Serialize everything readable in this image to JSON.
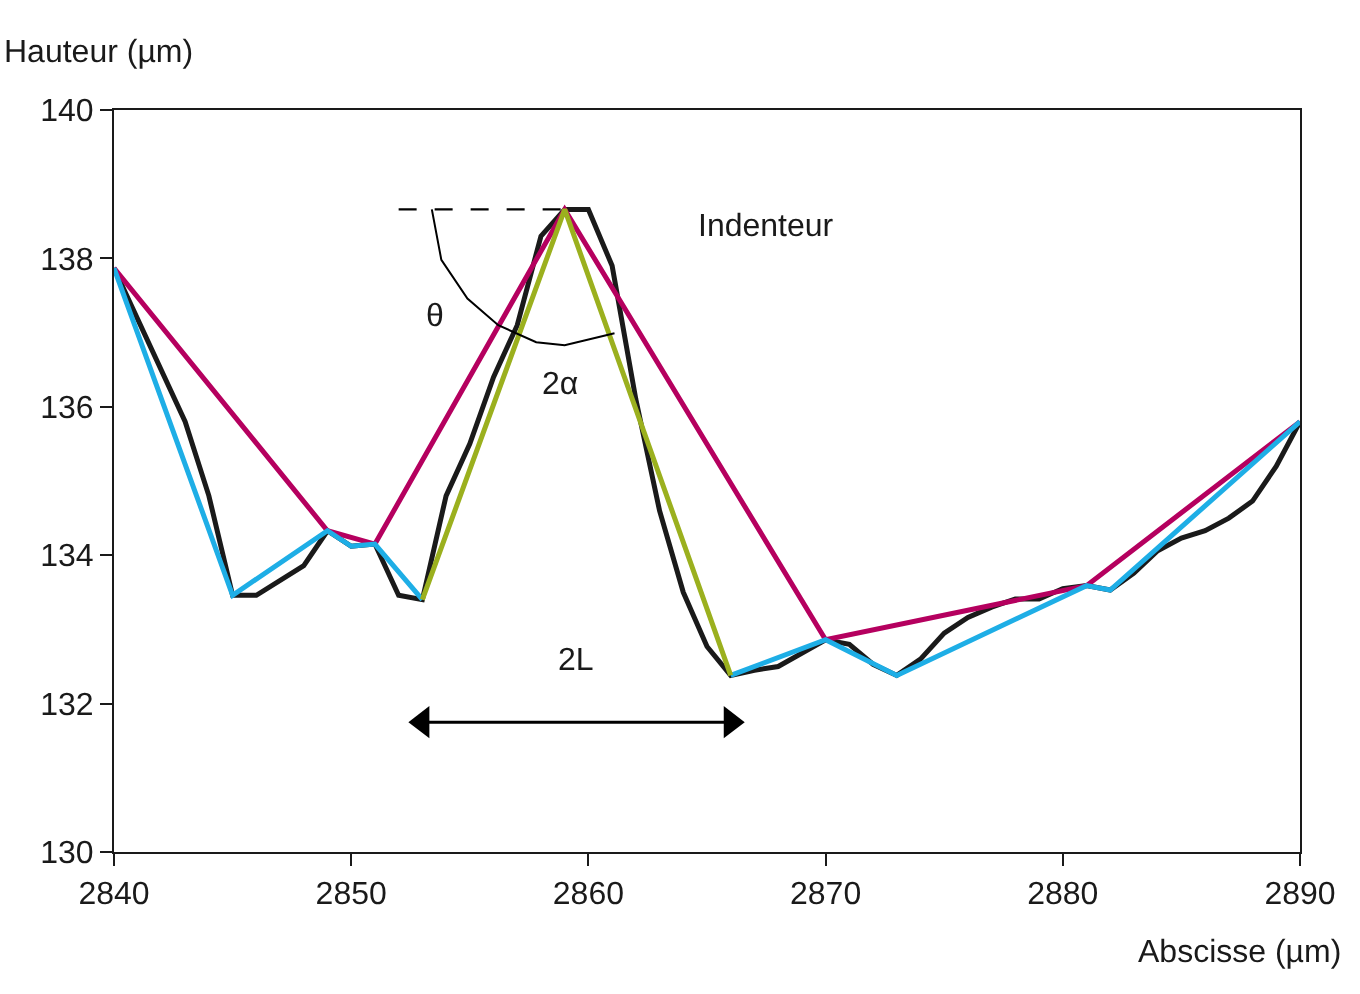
{
  "chart_data": {
    "type": "line",
    "xlabel": "Abscisse (µm)",
    "ylabel": "Hauteur (µm)",
    "xlim": [
      2840,
      2890
    ],
    "xticks": [
      2840,
      2850,
      2860,
      2870,
      2880,
      2890
    ],
    "ylim": [
      130,
      140
    ],
    "yticks": [
      130,
      132,
      134,
      136,
      138,
      140
    ],
    "marker": "none",
    "line_style": "solid",
    "series": [
      {
        "color": "#1a1a1a",
        "x": [
          2840,
          2843,
          2844,
          2845,
          2846,
          2848,
          2849,
          2850,
          2851,
          2852,
          2853,
          2854,
          2855,
          2856,
          2857,
          2858,
          2859,
          2860,
          2861,
          2862,
          2863,
          2864,
          2865,
          2866,
          2867,
          2868,
          2870,
          2871,
          2872,
          2873,
          2874,
          2875,
          2876,
          2877,
          2878,
          2879,
          2880,
          2881,
          2882,
          2883,
          2884,
          2885,
          2886,
          2887,
          2888,
          2889,
          2890
        ],
        "values": [
          137.87,
          135.8,
          134.8,
          133.46,
          133.46,
          133.86,
          134.33,
          134.12,
          134.15,
          133.46,
          133.4,
          134.8,
          135.5,
          136.4,
          137.1,
          138.3,
          138.66,
          138.66,
          137.9,
          136.1,
          134.6,
          133.5,
          132.77,
          132.38,
          132.45,
          132.5,
          132.86,
          132.8,
          132.53,
          132.38,
          132.6,
          132.95,
          133.16,
          133.3,
          133.41,
          133.41,
          133.55,
          133.59,
          133.53,
          133.76,
          134.06,
          134.23,
          134.33,
          134.5,
          134.73,
          135.2,
          135.8
        ]
      },
      {
        "color": "#b5005f",
        "x": [
          2840,
          2849,
          2851,
          2859,
          2870,
          2881,
          2890
        ],
        "values": [
          137.87,
          134.33,
          134.15,
          138.66,
          132.86,
          133.59,
          135.8
        ]
      },
      {
        "color": "#1eaee6",
        "x": [
          2840,
          2845,
          2849,
          2850,
          2851,
          2853,
          2859,
          2866,
          2870,
          2873,
          2881,
          2882,
          2890
        ],
        "values": [
          137.87,
          133.46,
          134.33,
          134.12,
          134.15,
          133.4,
          null,
          132.38,
          132.86,
          132.38,
          133.59,
          133.53,
          135.8
        ]
      },
      {
        "color": "#9bb01e",
        "x": [
          2853,
          2859,
          2866
        ],
        "values": [
          133.4,
          138.66,
          132.38
        ]
      },
      {
        "color": "#000000",
        "x": [
          2852,
          2859
        ],
        "values": [
          138.66,
          138.66
        ],
        "line_style": "dashed"
      },
      {
        "color": "#000000",
        "x": [
          2853.4,
          2853.8,
          2854.9,
          2856.2,
          2857.8,
          2859,
          2861.1
        ],
        "values": [
          138.66,
          137.98,
          137.46,
          137.1,
          136.87,
          136.83,
          136.99
        ]
      },
      {
        "color": "#000000",
        "x": [
          2853,
          2866
        ],
        "values": [
          131.75,
          131.75
        ],
        "marker": "triangle"
      }
    ],
    "annotations": [
      "Indenteur",
      "θ",
      "2α",
      "2L"
    ]
  }
}
